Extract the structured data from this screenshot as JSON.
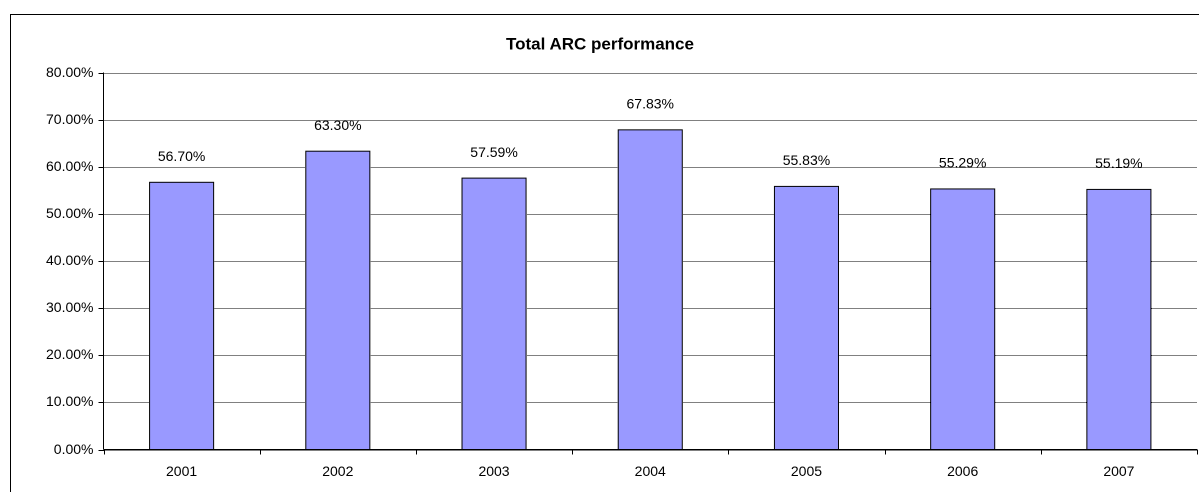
{
  "chart_data": {
    "type": "bar",
    "title": "Total ARC performance",
    "categories": [
      "2001",
      "2002",
      "2003",
      "2004",
      "2005",
      "2006",
      "2007"
    ],
    "values": [
      56.7,
      63.3,
      57.59,
      67.83,
      55.83,
      55.29,
      55.19
    ],
    "value_labels": [
      "56.70%",
      "63.30%",
      "57.59%",
      "67.83%",
      "55.83%",
      "55.29%",
      "55.19%"
    ],
    "color": "#9999ff",
    "ylim": [
      0,
      80
    ],
    "yticks": [
      {
        "value": 0,
        "label": "0.00%"
      },
      {
        "value": 10,
        "label": "10.00%"
      },
      {
        "value": 20,
        "label": "20.00%"
      },
      {
        "value": 30,
        "label": "30.00%"
      },
      {
        "value": 40,
        "label": "40.00%"
      },
      {
        "value": 50,
        "label": "50.00%"
      },
      {
        "value": 60,
        "label": "60.00%"
      },
      {
        "value": 70,
        "label": "70.00%"
      },
      {
        "value": 80,
        "label": "80.00%"
      }
    ],
    "grid": true
  }
}
